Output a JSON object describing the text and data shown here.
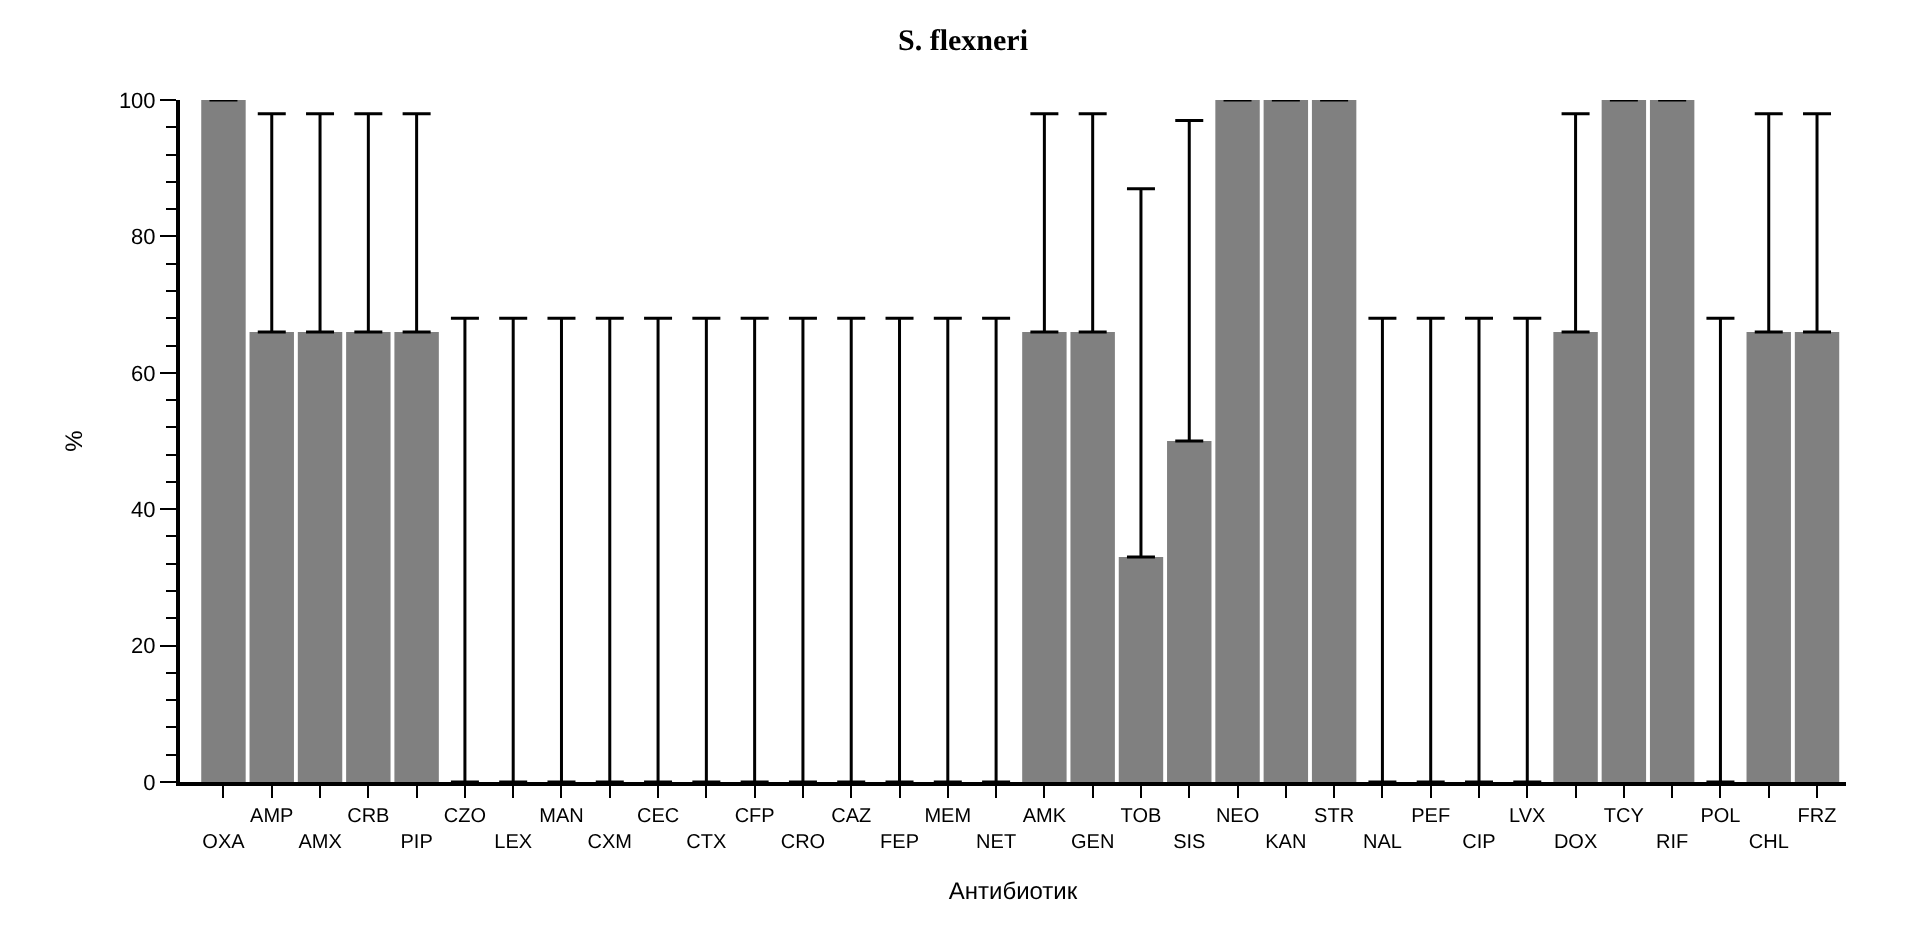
{
  "chart_data": {
    "type": "bar",
    "title": "S. flexneri",
    "xlabel": "Антибиотик",
    "ylabel": "%",
    "categories": [
      "OXA",
      "AMP",
      "AMX",
      "CRB",
      "PIP",
      "CZO",
      "LEX",
      "MAN",
      "CXM",
      "CEC",
      "CTX",
      "CFP",
      "CRO",
      "CAZ",
      "FEP",
      "MEM",
      "NET",
      "AMK",
      "GEN",
      "TOB",
      "SIS",
      "NEO",
      "KAN",
      "STR",
      "NAL",
      "PEF",
      "CIP",
      "LVX",
      "DOX",
      "TCY",
      "RIF",
      "POL",
      "CHL",
      "FRZ"
    ],
    "values": [
      100,
      66,
      66,
      66,
      66,
      0,
      0,
      0,
      0,
      0,
      0,
      0,
      0,
      0,
      0,
      0,
      0,
      66,
      66,
      33,
      50,
      100,
      100,
      100,
      0,
      0,
      0,
      0,
      66,
      100,
      100,
      0,
      66,
      66
    ],
    "errors": [
      null,
      [
        66,
        98
      ],
      [
        66,
        98
      ],
      [
        66,
        98
      ],
      [
        66,
        98
      ],
      [
        0,
        68
      ],
      [
        0,
        68
      ],
      [
        0,
        68
      ],
      [
        0,
        68
      ],
      [
        0,
        68
      ],
      [
        0,
        68
      ],
      [
        0,
        68
      ],
      [
        0,
        68
      ],
      [
        0,
        68
      ],
      [
        0,
        68
      ],
      [
        0,
        68
      ],
      [
        0,
        68
      ],
      [
        66,
        98
      ],
      [
        66,
        98
      ],
      [
        33,
        87
      ],
      [
        50,
        97
      ],
      null,
      null,
      null,
      [
        0,
        68
      ],
      [
        0,
        68
      ],
      [
        0,
        68
      ],
      [
        0,
        68
      ],
      [
        66,
        98
      ],
      null,
      null,
      [
        0,
        68
      ],
      [
        66,
        98
      ],
      [
        66,
        98
      ]
    ],
    "color": "#808080",
    "ylim": [
      0,
      100
    ],
    "yticks": [
      0,
      20,
      40,
      60,
      80,
      100
    ]
  }
}
